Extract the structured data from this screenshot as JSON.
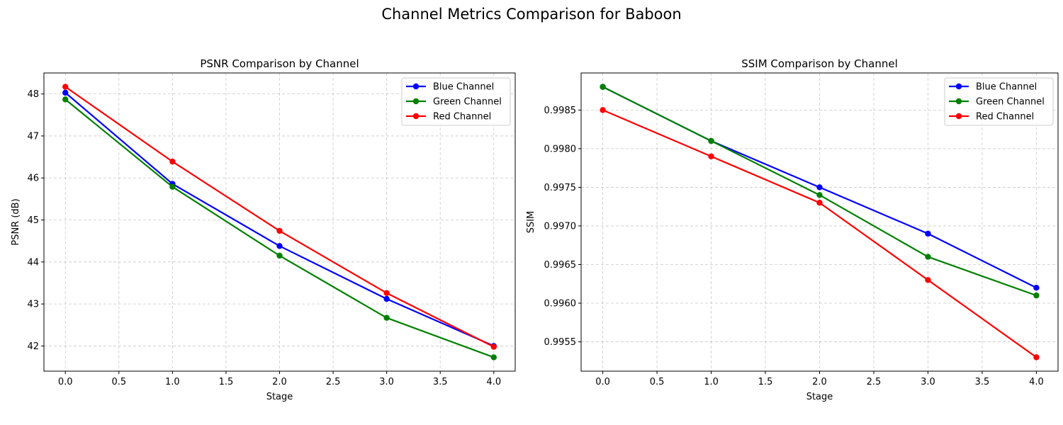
{
  "figure": {
    "suptitle": "Channel Metrics Comparison for Baboon"
  },
  "chart_data": [
    {
      "type": "line",
      "title": "PSNR Comparison by Channel",
      "xlabel": "Stage",
      "ylabel": "PSNR (dB)",
      "xlim": [
        -0.2,
        4.2
      ],
      "ylim": [
        41.4,
        48.5
      ],
      "xticks": [
        0.0,
        0.5,
        1.0,
        1.5,
        2.0,
        2.5,
        3.0,
        3.5,
        4.0
      ],
      "xtick_labels": [
        "0.0",
        "0.5",
        "1.0",
        "1.5",
        "2.0",
        "2.5",
        "3.0",
        "3.5",
        "4.0"
      ],
      "yticks": [
        42,
        43,
        44,
        45,
        46,
        47,
        48
      ],
      "ytick_labels": [
        "42",
        "43",
        "44",
        "45",
        "46",
        "47",
        "48"
      ],
      "grid": true,
      "legend_position": "upper right",
      "x": [
        0,
        1,
        2,
        3,
        4
      ],
      "series": [
        {
          "name": "Blue Channel",
          "color": "#0000ff",
          "values": [
            48.03,
            45.86,
            44.38,
            43.12,
            42.0
          ]
        },
        {
          "name": "Green Channel",
          "color": "#008000",
          "values": [
            47.87,
            45.79,
            44.15,
            42.67,
            41.73
          ]
        },
        {
          "name": "Red Channel",
          "color": "#ff0000",
          "values": [
            48.17,
            46.39,
            44.74,
            43.26,
            41.98
          ]
        }
      ]
    },
    {
      "type": "line",
      "title": "SSIM Comparison by Channel",
      "xlabel": "Stage",
      "ylabel": "SSIM",
      "xlim": [
        -0.2,
        4.2
      ],
      "ylim": [
        0.99512,
        0.99898
      ],
      "xticks": [
        0.0,
        0.5,
        1.0,
        1.5,
        2.0,
        2.5,
        3.0,
        3.5,
        4.0
      ],
      "xtick_labels": [
        "0.0",
        "0.5",
        "1.0",
        "1.5",
        "2.0",
        "2.5",
        "3.0",
        "3.5",
        "4.0"
      ],
      "yticks": [
        0.9955,
        0.996,
        0.9965,
        0.997,
        0.9975,
        0.998,
        0.9985
      ],
      "ytick_labels": [
        "0.9955",
        "0.9960",
        "0.9965",
        "0.9970",
        "0.9975",
        "0.9980",
        "0.9985"
      ],
      "grid": true,
      "legend_position": "upper right",
      "x": [
        0,
        1,
        2,
        3,
        4
      ],
      "series": [
        {
          "name": "Blue Channel",
          "color": "#0000ff",
          "values": [
            0.9988,
            0.9981,
            0.9975,
            0.9969,
            0.9962
          ]
        },
        {
          "name": "Green Channel",
          "color": "#008000",
          "values": [
            0.9988,
            0.9981,
            0.9974,
            0.9966,
            0.9961
          ]
        },
        {
          "name": "Red Channel",
          "color": "#ff0000",
          "values": [
            0.9985,
            0.9979,
            0.9973,
            0.9963,
            0.9953
          ]
        }
      ]
    }
  ]
}
